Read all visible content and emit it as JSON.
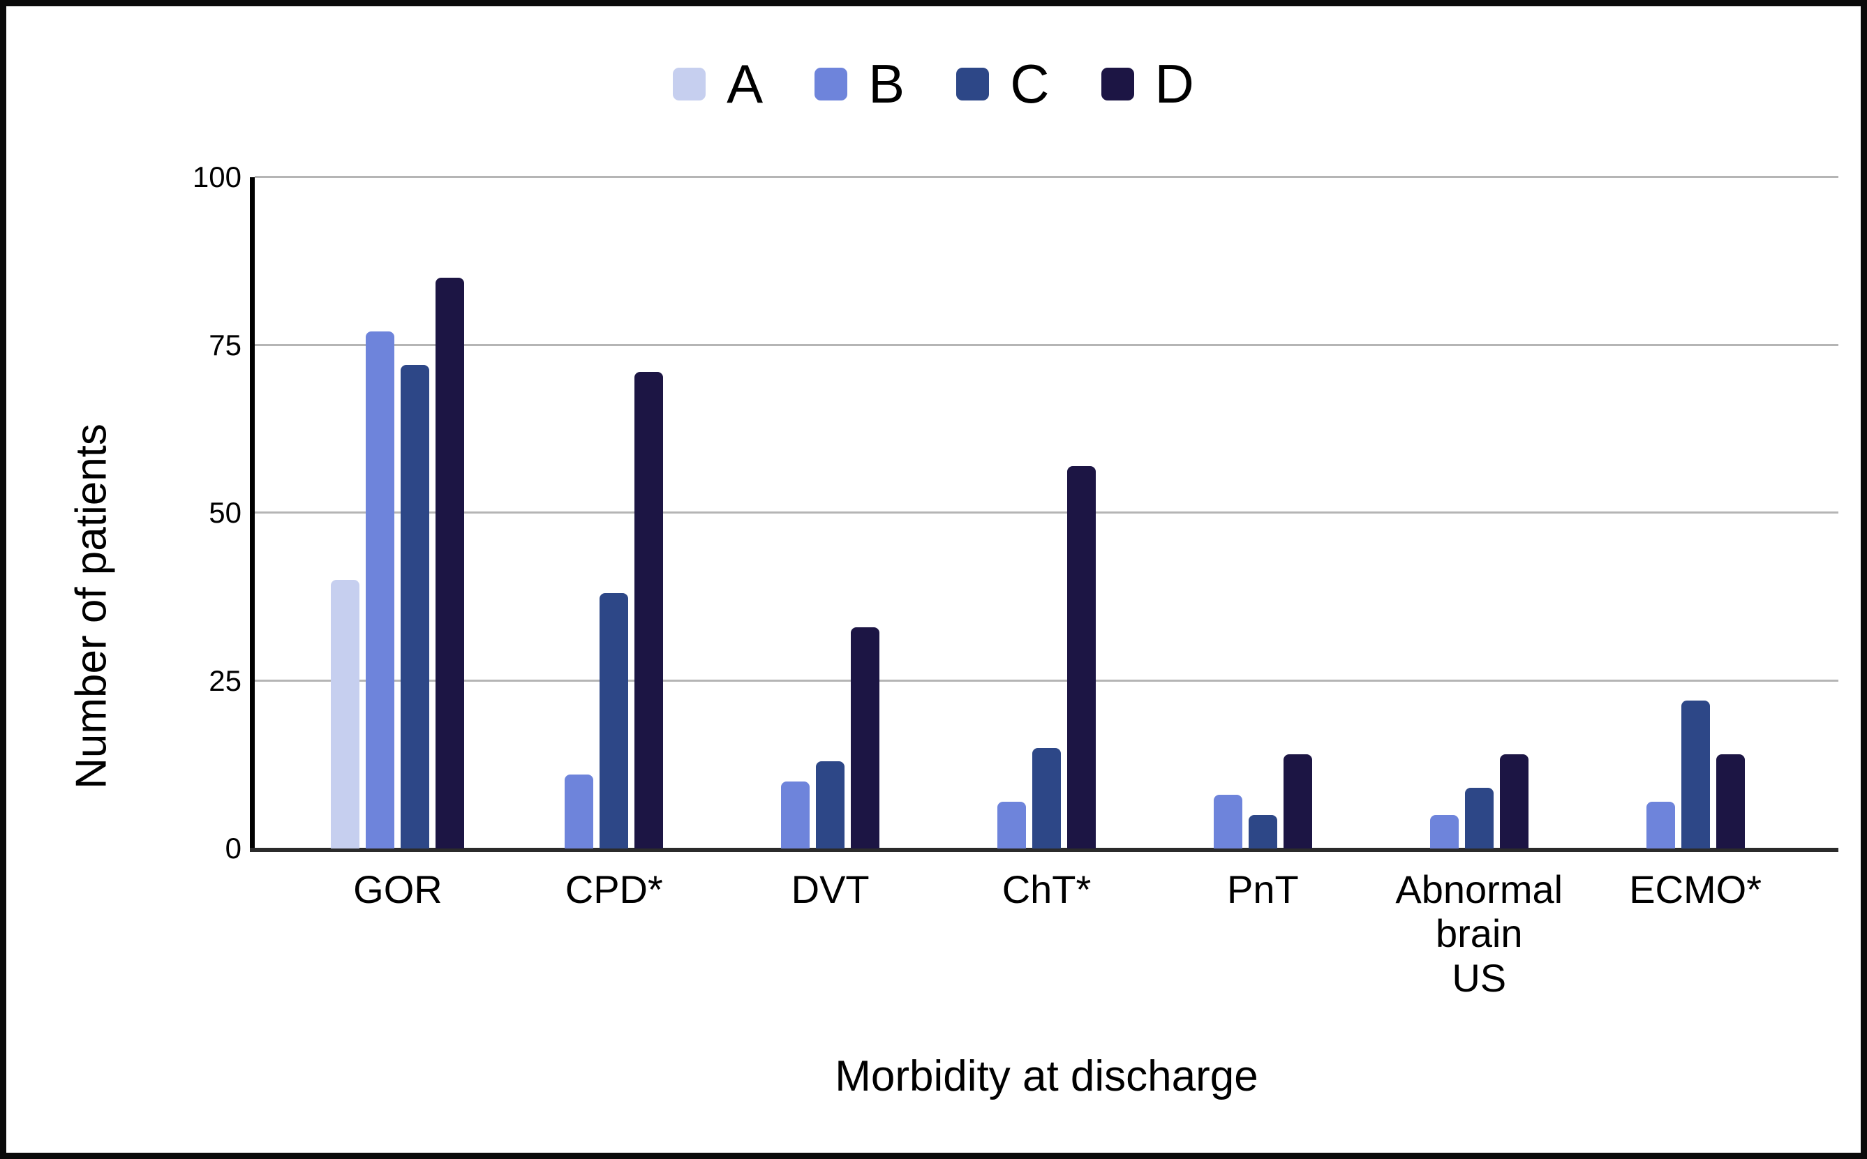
{
  "chart_data": {
    "type": "bar",
    "title": "",
    "ylabel": "Number of patients",
    "xlabel": "Morbidity at discharge",
    "categories": [
      "GOR",
      "CPD*",
      "DVT",
      "ChT*",
      "PnT",
      "Abnormal brain US",
      "ECMO*"
    ],
    "category_display": [
      "GOR",
      "CPD*",
      "DVT",
      "ChT*",
      "PnT",
      "Abnormal\nbrain\nUS",
      "ECMO*"
    ],
    "series": [
      {
        "name": "A",
        "color": "#c6cfef",
        "values": [
          40,
          null,
          null,
          null,
          null,
          null,
          null
        ]
      },
      {
        "name": "B",
        "color": "#6e84db",
        "values": [
          77,
          11,
          10,
          7,
          8,
          5,
          7
        ]
      },
      {
        "name": "C",
        "color": "#2d4787",
        "values": [
          72,
          38,
          13,
          15,
          5,
          9,
          22
        ]
      },
      {
        "name": "D",
        "color": "#1c1544",
        "values": [
          85,
          71,
          33,
          57,
          14,
          14,
          14
        ]
      }
    ],
    "ylim": [
      0,
      100
    ],
    "yticks": [
      0,
      25,
      50,
      75,
      100
    ],
    "legend_position": "top",
    "grid": "horizontal",
    "colors": {
      "gridline": "#b5b5b5",
      "y_axis": "#000000",
      "x_axis": "#2b2b2b",
      "frame_border": "#0a0a0a",
      "background": "#ffffff",
      "text": "#000000"
    }
  }
}
